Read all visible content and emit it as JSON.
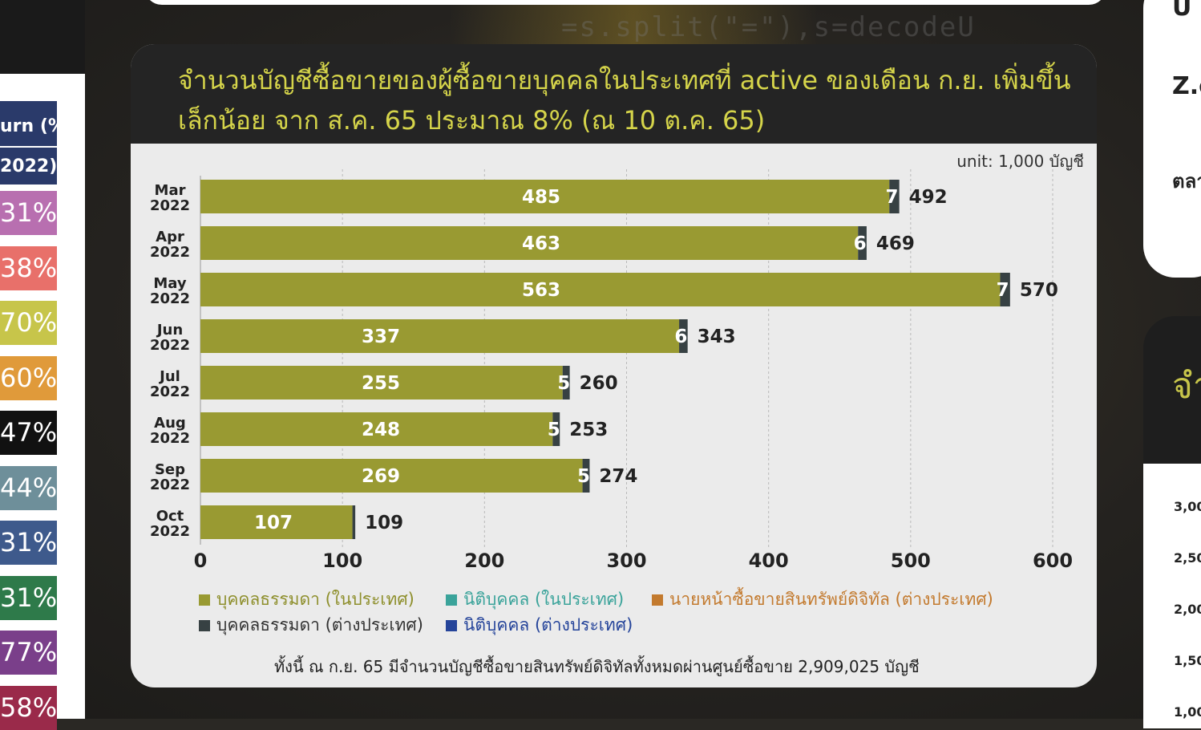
{
  "left_panel": {
    "header": [
      "urn (%)",
      "2022)"
    ],
    "rows": [
      {
        "text": "31%",
        "color": "#b86fb0"
      },
      {
        "text": "38%",
        "color": "#e8706a"
      },
      {
        "text": "70%",
        "color": "#c7c54a"
      },
      {
        "text": "60%",
        "color": "#e09a3a"
      },
      {
        "text": "47%",
        "color": "#111111"
      },
      {
        "text": "44%",
        "color": "#6e8f9a"
      },
      {
        "text": "31%",
        "color": "#3e5a8c"
      },
      {
        "text": "31%",
        "color": "#2e7a4a"
      },
      {
        "text": "77%",
        "color": "#7a3f8a"
      },
      {
        "text": "58%",
        "color": "#9a2a4a"
      }
    ]
  },
  "right_panel": {
    "card_texts": [
      "U",
      "Z.c",
      "ตลา"
    ],
    "dark_text": "จำ",
    "axis_ticks": [
      "3,00",
      "2,50",
      "2,00",
      "1,50",
      "1,00"
    ]
  },
  "card": {
    "title_line1": "จำนวนบัญชีซื้อขายของผู้ซื้อขายบุคคลในประเทศที่ active ของเดือน ก.ย. เพิ่มขึ้น",
    "title_line2": "เล็กน้อย จาก ส.ค. 65 ประมาณ 8% (ณ 10 ต.ค. 65)",
    "unit": "unit: 1,000 บัญชี",
    "footnote": "ทั้งนี้ ณ ก.ย. 65 มีจำนวนบัญชีซื้อขายสินทรัพย์ดิจิทัลทั้งหมดผ่านศูนย์ซื้อขาย  2,909,025  บัญชี"
  },
  "chart_data": {
    "type": "bar",
    "orientation": "horizontal",
    "stacked": true,
    "categories": [
      [
        "Mar",
        "2022"
      ],
      [
        "Apr",
        "2022"
      ],
      [
        "May",
        "2022"
      ],
      [
        "Jun",
        "2022"
      ],
      [
        "Jul",
        "2022"
      ],
      [
        "Aug",
        "2022"
      ],
      [
        "Sep",
        "2022"
      ],
      [
        "Oct",
        "2022"
      ]
    ],
    "series": [
      {
        "name": "บุคคลธรรมดา (ในประเทศ)",
        "color": "#999a32",
        "values": [
          485,
          463,
          563,
          337,
          255,
          248,
          269,
          107
        ]
      },
      {
        "name": "บุคคลธรรมดา (ต่างประเทศ)",
        "color": "#374143",
        "values": [
          7,
          6,
          7,
          6,
          5,
          5,
          5,
          2
        ]
      },
      {
        "name": "นิติบุคคล (ในประเทศ)",
        "color": "#3aa39a",
        "values": [
          0,
          0,
          0,
          0,
          0,
          0,
          0,
          0
        ]
      },
      {
        "name": "นิติบุคคล (ต่างประเทศ)",
        "color": "#25449a",
        "values": [
          0,
          0,
          0,
          0,
          0,
          0,
          0,
          0
        ]
      },
      {
        "name": "นายหน้าซื้อขายสินทรัพย์ดิจิทัล (ต่างประเทศ)",
        "color": "#c37a2e",
        "values": [
          0,
          0,
          0,
          0,
          0,
          0,
          0,
          0
        ]
      }
    ],
    "segment_labels": [
      [
        "485",
        "7"
      ],
      [
        "463",
        "6"
      ],
      [
        "563",
        "7"
      ],
      [
        "337",
        "6"
      ],
      [
        "255",
        "5"
      ],
      [
        "248",
        "5"
      ],
      [
        "269",
        "5"
      ],
      [
        "107",
        ""
      ]
    ],
    "totals": [
      "492",
      "469",
      "570",
      "343",
      "260",
      "253",
      "274",
      "109"
    ],
    "xticks": [
      "0",
      "100",
      "200",
      "300",
      "400",
      "500",
      "600"
    ],
    "xlim": [
      0,
      600
    ],
    "grid": true,
    "legend_position": "bottom"
  }
}
